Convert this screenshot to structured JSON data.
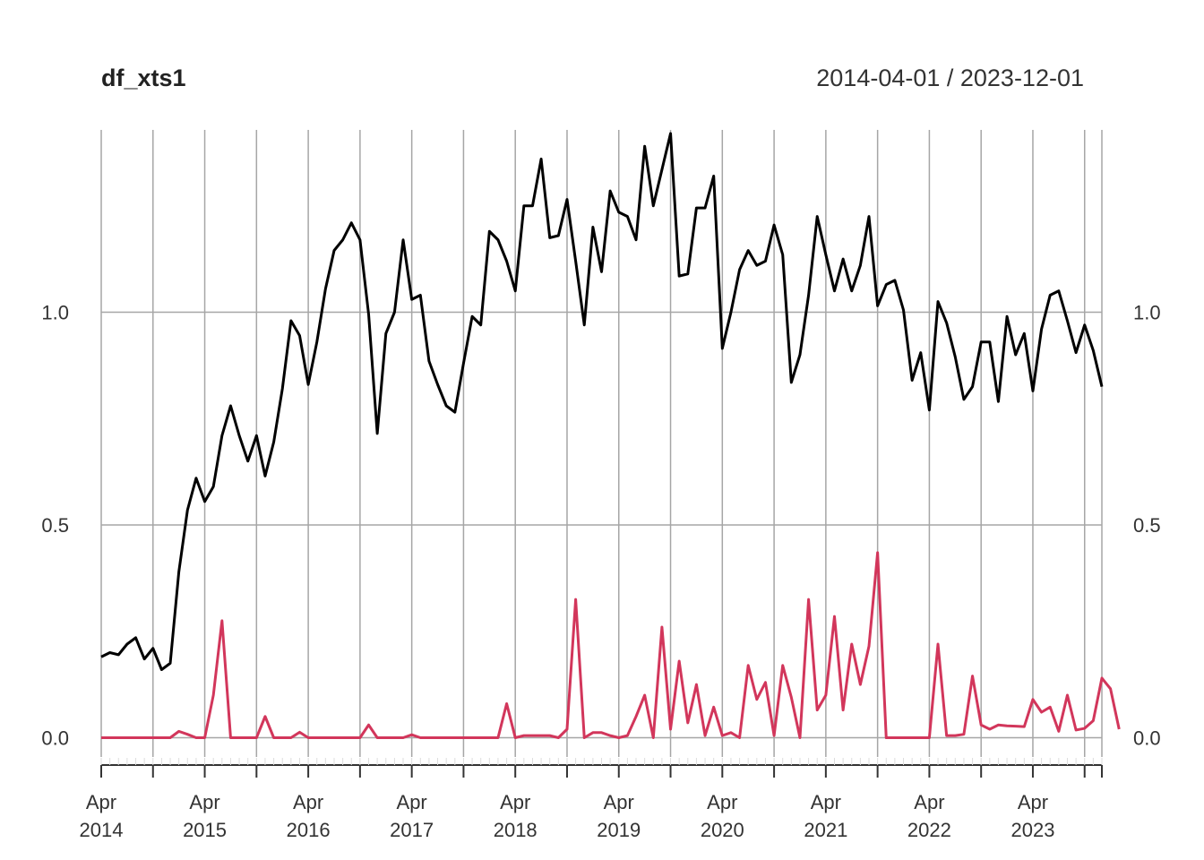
{
  "chart_data": {
    "type": "line",
    "title": "df_xts1",
    "date_range": "2014-04-01 / 2023-12-01",
    "xlabel": "",
    "ylabel": "",
    "x_start": "2014-04",
    "x_end": "2023-12",
    "x_ticks": [
      {
        "month": "Apr",
        "year": "2014"
      },
      {
        "month": "Apr",
        "year": "2015"
      },
      {
        "month": "Apr",
        "year": "2016"
      },
      {
        "month": "Apr",
        "year": "2017"
      },
      {
        "month": "Apr",
        "year": "2018"
      },
      {
        "month": "Apr",
        "year": "2019"
      },
      {
        "month": "Apr",
        "year": "2020"
      },
      {
        "month": "Apr",
        "year": "2021"
      },
      {
        "month": "Apr",
        "year": "2022"
      },
      {
        "month": "Apr",
        "year": "2023"
      }
    ],
    "y_ticks": [
      "0.0",
      "0.5",
      "1.0"
    ],
    "ylim": [
      -0.04,
      1.43
    ],
    "grid": true,
    "series": [
      {
        "color": "#000000",
        "values": [
          0.19,
          0.2,
          0.195,
          0.22,
          0.235,
          0.185,
          0.21,
          0.16,
          0.175,
          0.39,
          0.535,
          0.61,
          0.555,
          0.59,
          0.71,
          0.78,
          0.71,
          0.65,
          0.71,
          0.615,
          0.695,
          0.82,
          0.98,
          0.945,
          0.83,
          0.93,
          1.055,
          1.145,
          1.17,
          1.21,
          1.17,
          0.995,
          0.715,
          0.95,
          1.0,
          1.17,
          1.03,
          1.04,
          0.885,
          0.83,
          0.78,
          0.765,
          0.88,
          0.99,
          0.97,
          1.19,
          1.17,
          1.12,
          1.05,
          1.25,
          1.25,
          1.36,
          1.175,
          1.18,
          1.265,
          1.12,
          0.97,
          1.2,
          1.095,
          1.285,
          1.235,
          1.225,
          1.17,
          1.39,
          1.25,
          1.335,
          1.42,
          1.085,
          1.09,
          1.245,
          1.245,
          1.32,
          0.915,
          1.0,
          1.1,
          1.145,
          1.11,
          1.12,
          1.205,
          1.135,
          0.835,
          0.9,
          1.04,
          1.225,
          1.135,
          1.05,
          1.125,
          1.05,
          1.11,
          1.225,
          1.015,
          1.065,
          1.075,
          1.005,
          0.84,
          0.905,
          0.77,
          1.025,
          0.975,
          0.895,
          0.795,
          0.825,
          0.93,
          0.93,
          0.79,
          0.99,
          0.9,
          0.95,
          0.815,
          0.96,
          1.04,
          1.05,
          0.98,
          0.905,
          0.97,
          0.91,
          0.825
        ]
      },
      {
        "color": "#D2365B",
        "values": [
          0,
          0,
          0,
          0,
          0,
          0,
          0,
          0,
          0,
          0.015,
          0.008,
          0,
          0,
          0.1,
          0.275,
          0,
          0,
          0,
          0,
          0.05,
          0,
          0,
          0,
          0.013,
          0,
          0,
          0,
          0,
          0,
          0,
          0,
          0.03,
          0,
          0,
          0,
          0,
          0.007,
          0,
          0,
          0,
          0,
          0,
          0,
          0,
          0,
          0,
          0,
          0.08,
          0,
          0.005,
          0.005,
          0.005,
          0.005,
          0,
          0.02,
          0.325,
          0,
          0.012,
          0.012,
          0.005,
          0,
          0.005,
          0.05,
          0.1,
          0,
          0.26,
          0.02,
          0.18,
          0.035,
          0.125,
          0.005,
          0.072,
          0.005,
          0.012,
          0,
          0.17,
          0.09,
          0.13,
          0.005,
          0.17,
          0.095,
          0,
          0.325,
          0.065,
          0.1,
          0.285,
          0.065,
          0.22,
          0.125,
          0.215,
          0.435,
          0,
          0,
          0,
          0,
          0,
          0,
          0.22,
          0.005,
          0.005,
          0.008,
          0.145,
          0.03,
          0.02,
          0.03,
          0.028,
          0.027,
          0.026,
          0.09,
          0.06,
          0.072,
          0.015,
          0.1,
          0.018,
          0.022,
          0.04,
          0.14,
          0.115,
          0.02
        ]
      }
    ]
  }
}
